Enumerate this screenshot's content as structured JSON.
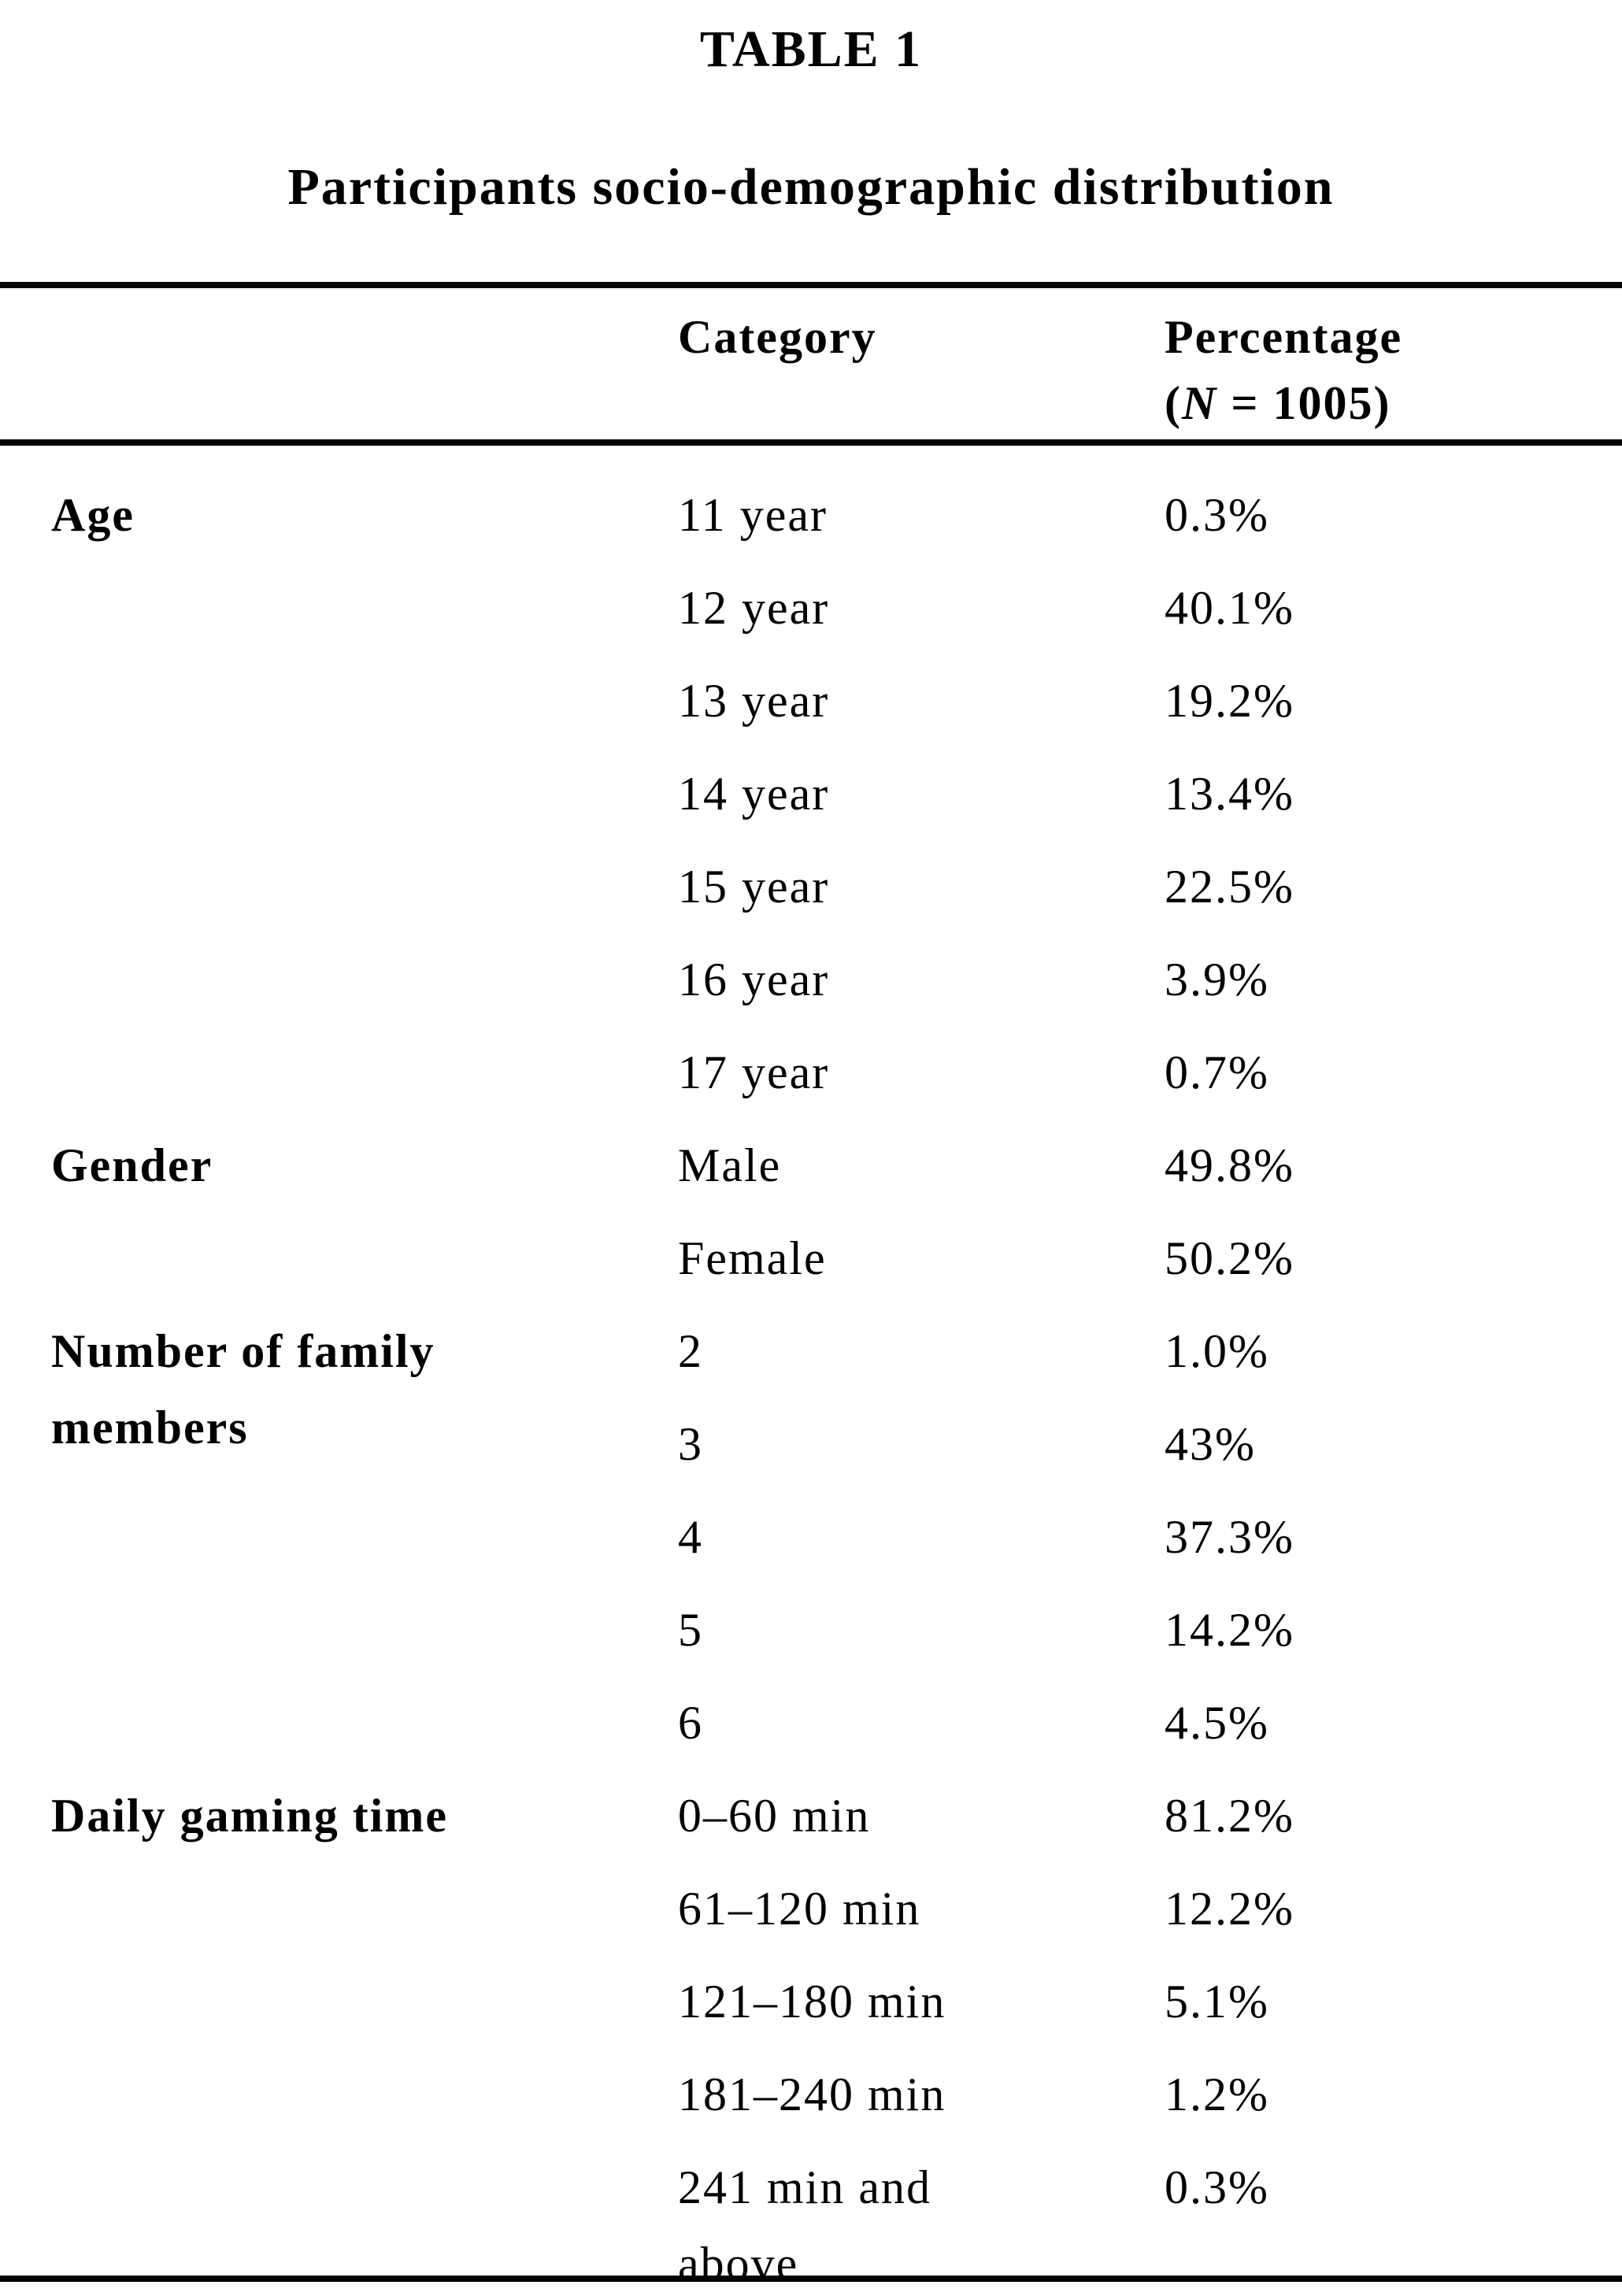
{
  "title": "TABLE 1",
  "subtitle": "Participants socio-demographic distribution",
  "header": {
    "col_category": "Category",
    "col_percentage_line1": "Percentage",
    "n_open": "(",
    "n_symbol": "N",
    "n_rest": " = 1005)"
  },
  "table": {
    "groups": [
      {
        "label": "Age",
        "rows": [
          {
            "category": "11 year",
            "percentage": "0.3%"
          },
          {
            "category": "12 year",
            "percentage": "40.1%"
          },
          {
            "category": "13 year",
            "percentage": "19.2%"
          },
          {
            "category": "14 year",
            "percentage": "13.4%"
          },
          {
            "category": "15 year",
            "percentage": "22.5%"
          },
          {
            "category": "16 year",
            "percentage": "3.9%"
          },
          {
            "category": "17 year",
            "percentage": "0.7%"
          }
        ]
      },
      {
        "label": "Gender",
        "rows": [
          {
            "category": "Male",
            "percentage": "49.8%"
          },
          {
            "category": "Female",
            "percentage": "50.2%"
          }
        ]
      },
      {
        "label": "Number of family members",
        "rows": [
          {
            "category": "2",
            "percentage": "1.0%"
          },
          {
            "category": "3",
            "percentage": "43%"
          },
          {
            "category": "4",
            "percentage": "37.3%"
          },
          {
            "category": "5",
            "percentage": "14.2%"
          },
          {
            "category": "6",
            "percentage": "4.5%"
          }
        ]
      },
      {
        "label": "Daily gaming time",
        "rows": [
          {
            "category": "0–60 min",
            "percentage": "81.2%"
          },
          {
            "category": "61–120 min",
            "percentage": "12.2%"
          },
          {
            "category": "121–180 min",
            "percentage": "5.1%"
          },
          {
            "category": "181–240 min",
            "percentage": "1.2%"
          },
          {
            "category": "241 min and above",
            "percentage": "0.3%"
          }
        ]
      }
    ]
  }
}
